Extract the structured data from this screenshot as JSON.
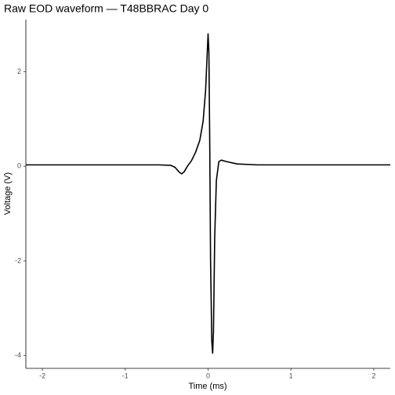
{
  "chart_data": {
    "type": "line",
    "title": "Raw EOD waveform — T48BBRAC Day 0",
    "x_label": "Time (ms)",
    "y_label": "Voltage (V)",
    "x": [
      -2.2,
      -1.5,
      -0.6,
      -0.45,
      -0.4,
      -0.35,
      -0.32,
      -0.29,
      -0.25,
      -0.2,
      -0.15,
      -0.1,
      -0.06,
      -0.03,
      -0.01,
      0.0,
      0.01,
      0.02,
      0.03,
      0.045,
      0.055,
      0.065,
      0.08,
      0.1,
      0.13,
      0.16,
      0.22,
      0.35,
      0.6,
      1.5,
      2.2
    ],
    "series": [
      {
        "name": "EOD",
        "color": "#000000",
        "values": [
          0.03,
          0.03,
          0.03,
          0.02,
          -0.02,
          -0.12,
          -0.16,
          -0.12,
          0.0,
          0.12,
          0.3,
          0.55,
          0.95,
          1.6,
          2.4,
          2.8,
          2.4,
          0.5,
          -2.0,
          -3.7,
          -3.95,
          -3.5,
          -1.5,
          -0.3,
          0.1,
          0.13,
          0.1,
          0.05,
          0.03,
          0.03,
          0.03
        ]
      }
    ],
    "xlim": [
      -2.2,
      2.2
    ],
    "ylim": [
      -4.27,
      3.1
    ],
    "xticks": [
      -2,
      -1,
      0,
      1,
      2
    ],
    "yticks": [
      -4,
      -2,
      0,
      2
    ],
    "grid": false
  }
}
